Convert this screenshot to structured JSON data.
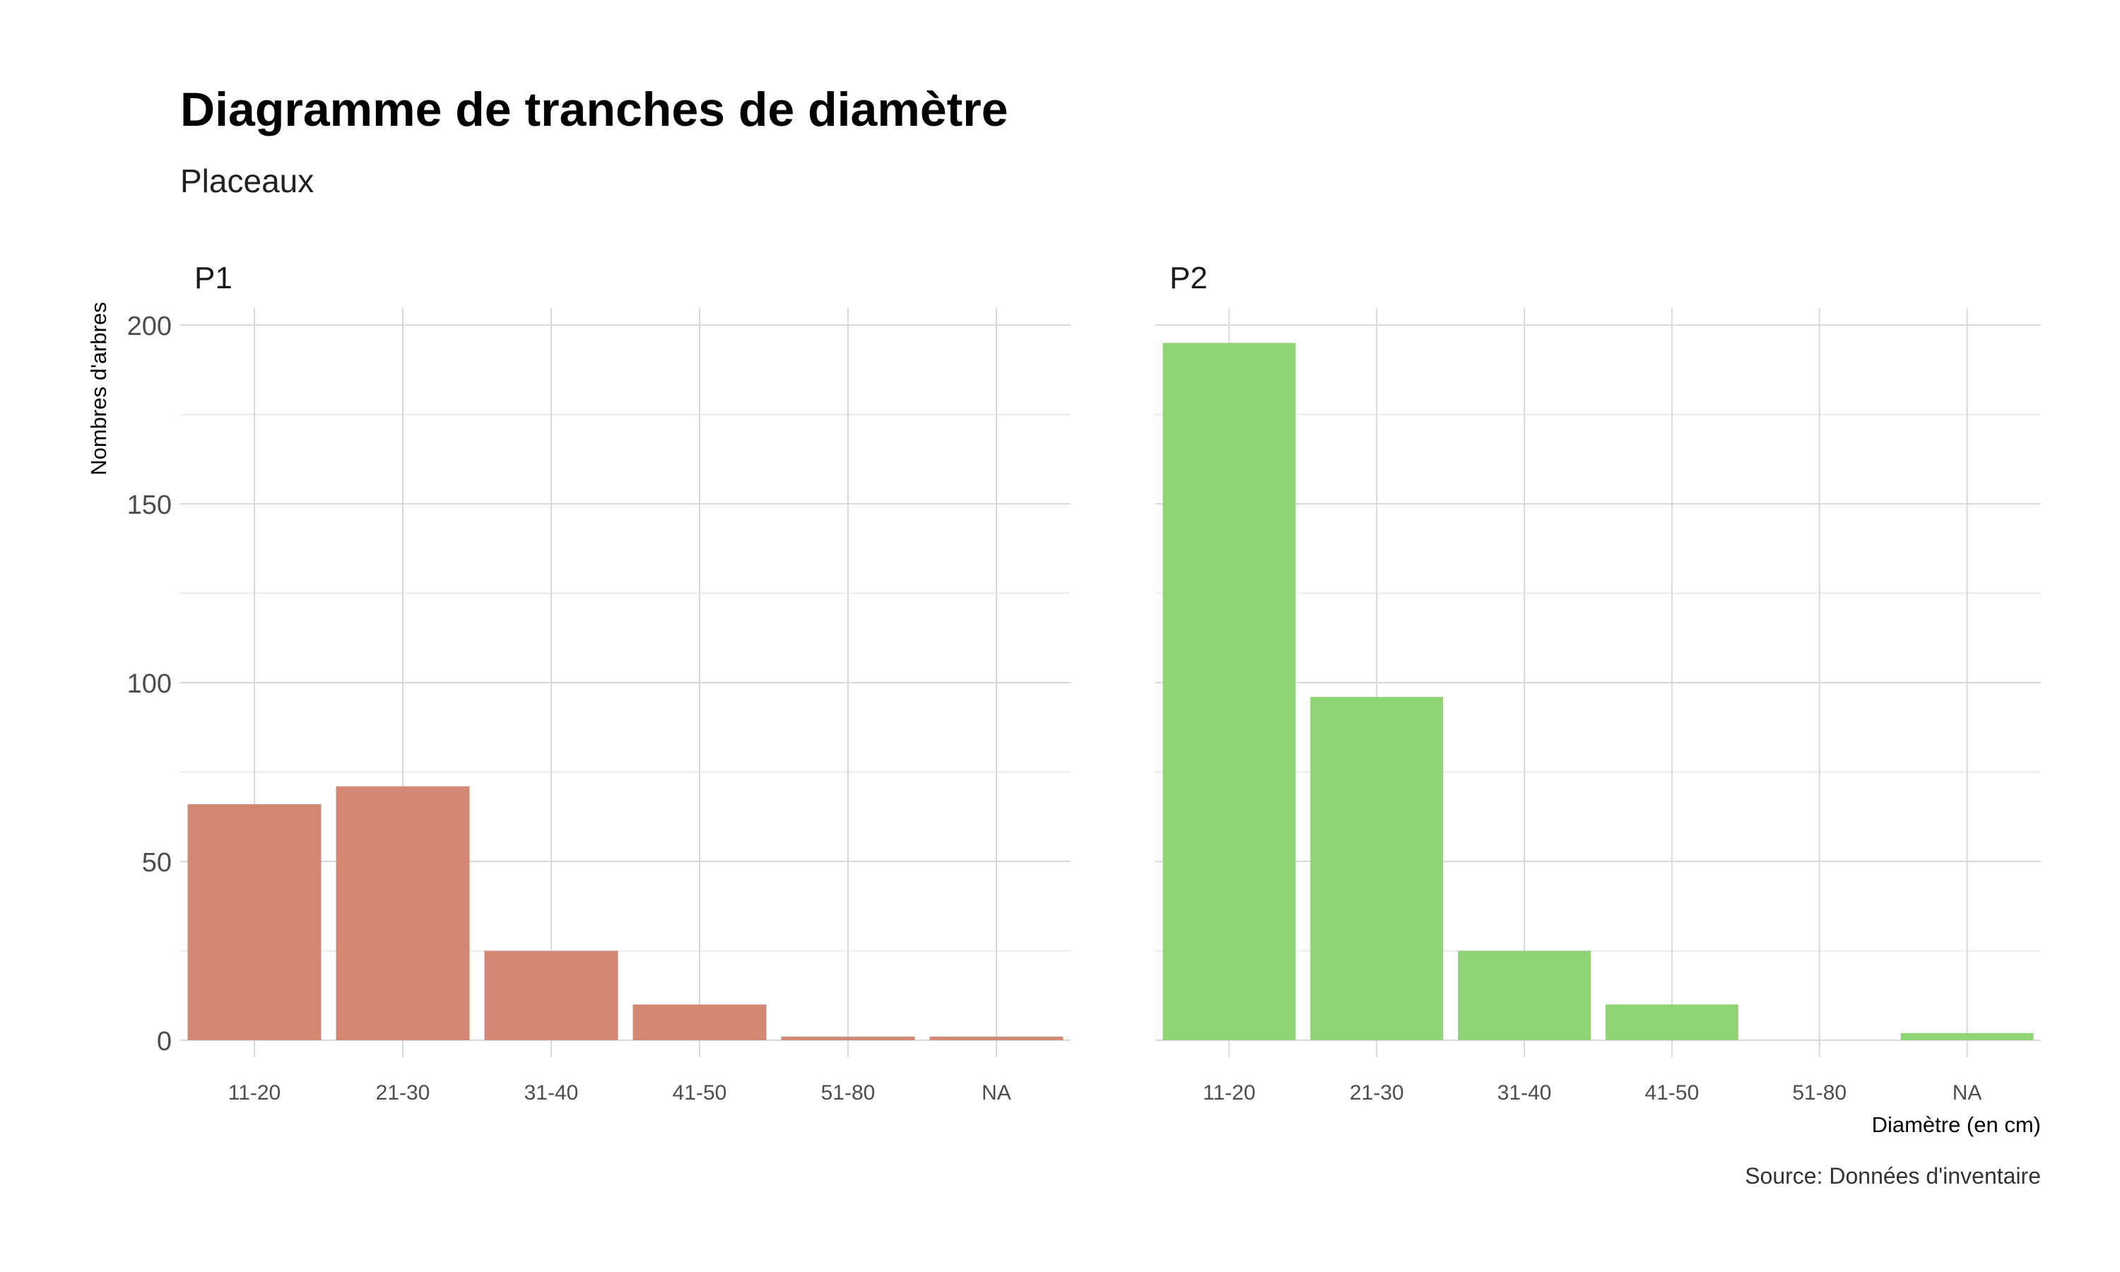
{
  "chart_data": {
    "type": "bar",
    "title": "Diagramme de tranches de diamètre",
    "subtitle": "Placeaux",
    "xlabel": "Diamètre (en cm)",
    "ylabel": "Nombres d'arbres",
    "caption": "Source: Données d'inventaire",
    "categories": [
      "11-20",
      "21-30",
      "31-40",
      "41-50",
      "51-80",
      "NA"
    ],
    "ylim": [
      0,
      200
    ],
    "yticks": [
      0,
      50,
      100,
      150,
      200
    ],
    "grid": true,
    "facets": [
      {
        "name": "P1",
        "color": "#D38874",
        "values": [
          66,
          71,
          25,
          10,
          1,
          1
        ]
      },
      {
        "name": "P2",
        "color": "#8FD377",
        "values": [
          195,
          96,
          25,
          10,
          0,
          2
        ]
      }
    ]
  }
}
